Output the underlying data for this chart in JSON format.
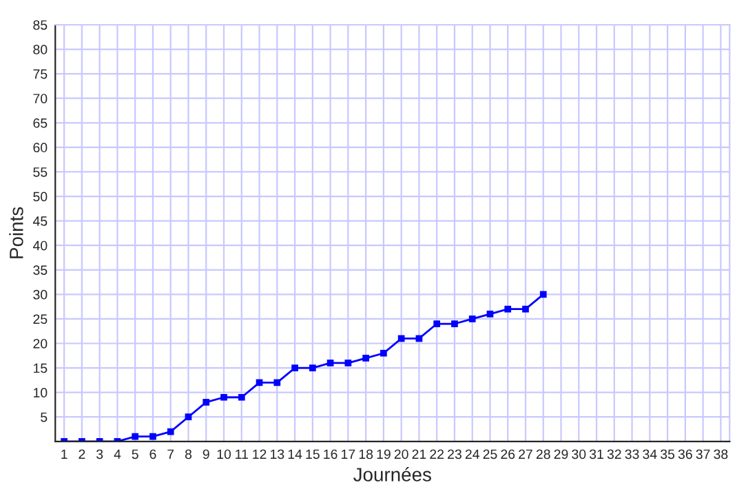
{
  "chart_data": {
    "type": "line",
    "xlabel": "Journées",
    "ylabel": "Points",
    "x": [
      1,
      2,
      3,
      4,
      5,
      6,
      7,
      8,
      9,
      10,
      11,
      12,
      13,
      14,
      15,
      16,
      17,
      18,
      19,
      20,
      21,
      22,
      23,
      24,
      25,
      26,
      27,
      28
    ],
    "series": [
      {
        "color": "#0000ff",
        "values": [
          0,
          0,
          0,
          0,
          1,
          1,
          2,
          5,
          8,
          9,
          9,
          12,
          12,
          15,
          15,
          16,
          16,
          17,
          18,
          21,
          21,
          24,
          24,
          25,
          26,
          27,
          27,
          30
        ]
      }
    ],
    "xlim": [
      0.5,
      38.5
    ],
    "ylim": [
      0,
      85
    ],
    "xticks": [
      1,
      2,
      3,
      4,
      5,
      6,
      7,
      8,
      9,
      10,
      11,
      12,
      13,
      14,
      15,
      16,
      17,
      18,
      19,
      20,
      21,
      22,
      23,
      24,
      25,
      26,
      27,
      28,
      29,
      30,
      31,
      32,
      33,
      34,
      35,
      36,
      37,
      38
    ],
    "yticks": [
      5,
      10,
      15,
      20,
      25,
      30,
      35,
      40,
      45,
      50,
      55,
      60,
      65,
      70,
      75,
      80,
      85
    ],
    "grid": true,
    "marker": "square",
    "line_style": "solid",
    "legend": false
  }
}
